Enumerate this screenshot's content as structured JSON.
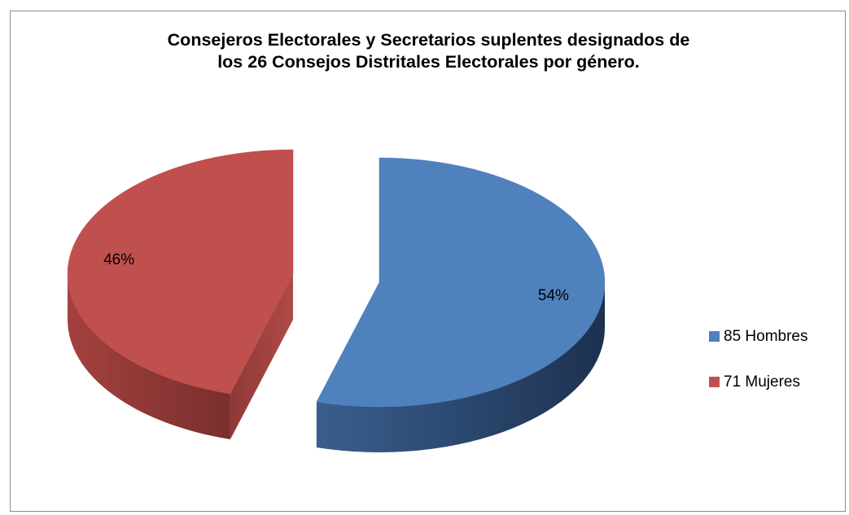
{
  "chart_data": {
    "type": "pie",
    "title_lines": [
      "Consejeros Electorales y Secretarios suplentes designados de",
      "los 26 Consejos Distritales Electorales por género."
    ],
    "slices": [
      {
        "label": "85 Hombres",
        "value": 85,
        "percent_label": "54%",
        "color": "#4f81bd"
      },
      {
        "label": "71 Mujeres",
        "value": 71,
        "percent_label": "46%",
        "color": "#c0504d"
      }
    ],
    "legend_position": "right",
    "style": "3d-exploded"
  }
}
